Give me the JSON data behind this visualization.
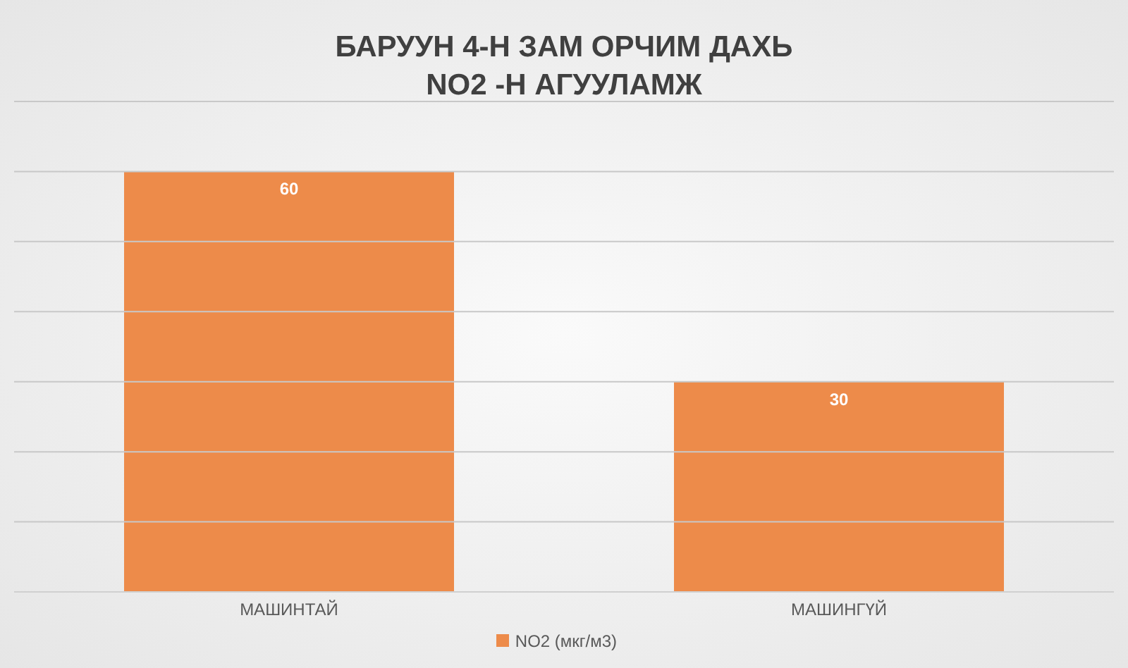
{
  "chart_data": {
    "type": "bar",
    "title": "БАРУУН 4-Н ЗАМ ОРЧИМ ДАХЬ\nNO2 -Н АГУУЛАМЖ",
    "categories": [
      "МАШИНТАЙ",
      "МАШИНГҮЙ"
    ],
    "series": [
      {
        "name": "NO2 (мкг/м3)",
        "color": "#ed8b4a",
        "values": [
          60,
          30
        ]
      }
    ],
    "ylim": [
      0,
      70
    ],
    "yticks": [
      {
        "value": 0,
        "label": null
      },
      {
        "value": 10,
        "label": null
      },
      {
        "value": 20,
        "label": null
      },
      {
        "value": 30,
        "label": null
      },
      {
        "value": 40,
        "label": null
      },
      {
        "value": 50,
        "label": null
      },
      {
        "value": 60,
        "label": null
      },
      {
        "value": 70,
        "label": null
      }
    ],
    "tick_labels": "x",
    "grid": "y",
    "legend": "bottom",
    "data_labels": true
  }
}
